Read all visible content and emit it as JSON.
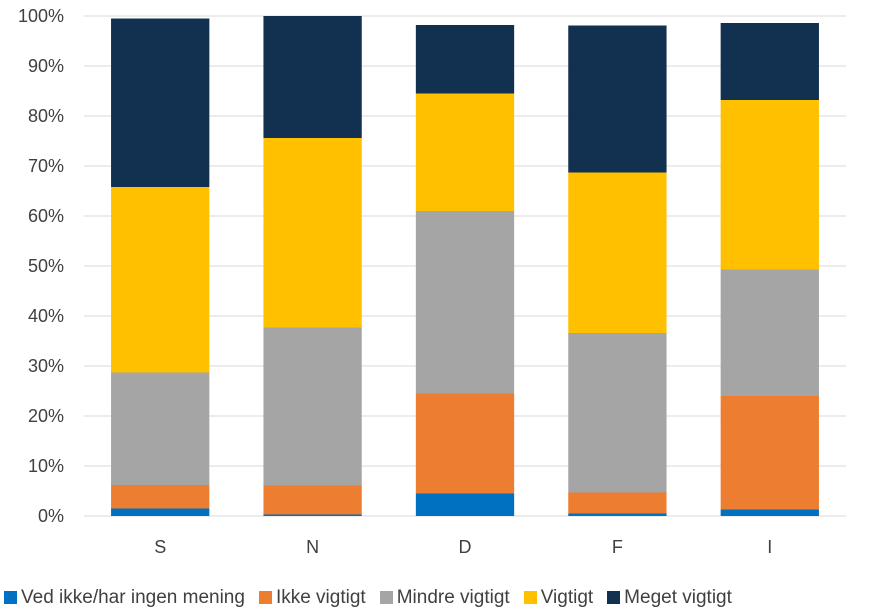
{
  "chart_data": {
    "type": "bar",
    "stacked": true,
    "categories": [
      "S",
      "N",
      "D",
      "F",
      "I"
    ],
    "ylim": [
      0,
      100
    ],
    "yticks": [
      "0%",
      "10%",
      "20%",
      "30%",
      "40%",
      "50%",
      "60%",
      "70%",
      "80%",
      "90%",
      "100%"
    ],
    "grid": true,
    "legend_position": "bottom",
    "series": [
      {
        "name": "Ved ikke/har ingen mening",
        "color": "#0070C0",
        "values": [
          1.5,
          0.3,
          4.5,
          0.5,
          1.3
        ]
      },
      {
        "name": "Ikke vigtigt",
        "color": "#ED7D31",
        "values": [
          4.7,
          5.8,
          20.0,
          4.2,
          22.7
        ]
      },
      {
        "name": "Mindre vigtigt",
        "color": "#A5A5A5",
        "values": [
          22.5,
          31.6,
          36.5,
          31.9,
          25.3
        ]
      },
      {
        "name": "Vigtigt",
        "color": "#FFC000",
        "values": [
          37.1,
          37.9,
          23.5,
          32.1,
          33.9
        ]
      },
      {
        "name": "Meget vigtigt",
        "color": "#12304F",
        "values": [
          33.7,
          24.4,
          13.7,
          29.4,
          15.4
        ]
      }
    ]
  }
}
